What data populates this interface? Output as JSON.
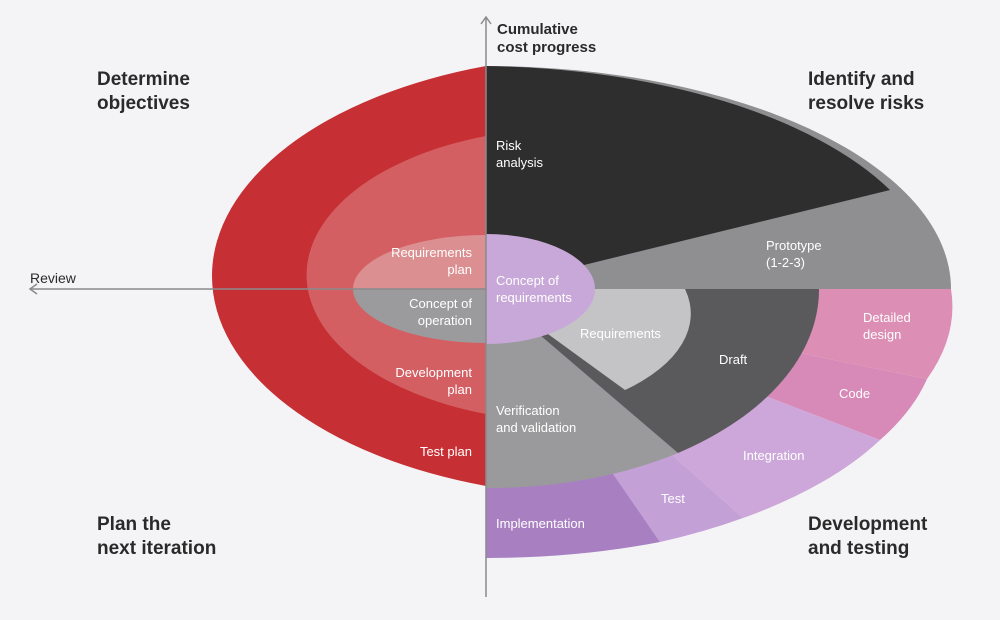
{
  "axes": {
    "vertical_label": [
      "Cumulative",
      "cost progress"
    ],
    "horizontal_label": "Review"
  },
  "quadrants": {
    "top_left": [
      "Determine",
      "objectives"
    ],
    "top_right": [
      "Identify and",
      "resolve risks"
    ],
    "bottom_left": [
      "Plan the",
      "next iteration"
    ],
    "bottom_right": [
      "Development",
      "and testing"
    ]
  },
  "segments": {
    "risk_analysis": [
      "Risk",
      "analysis"
    ],
    "prototype": [
      "Prototype",
      "(1-2-3)"
    ],
    "concept_of_requirements": [
      "Concept of",
      "requirements"
    ],
    "requirements_plan": [
      "Requirements",
      "plan"
    ],
    "concept_of_operation": [
      "Concept of",
      "operation"
    ],
    "development_plan": [
      "Development",
      "plan"
    ],
    "test_plan": [
      "Test plan"
    ],
    "requirements": [
      "Requirements"
    ],
    "draft": [
      "Draft"
    ],
    "detailed_design": [
      "Detailed",
      "design"
    ],
    "code": [
      "Code"
    ],
    "integration": [
      "Integration"
    ],
    "verification_and_validation": [
      "Verification",
      "and validation"
    ],
    "test": [
      "Test"
    ],
    "implementation": [
      "Implementation"
    ]
  },
  "colors": {
    "background": "#f4f4f6",
    "red_dark": "#c62f33",
    "red_mid": "#d45f62",
    "red_light": "#db8f90",
    "gray_inner": "#9b9b9d",
    "black": "#2e2e2e",
    "gray_mid": "#8f8f92",
    "gray_dark": "#5a5a5d",
    "gray_light": "#c4c4c6",
    "gray_vv": "#9a9a9c",
    "lilac_center": "#c8a8d8",
    "pink": "#dc8eb4",
    "lilac": "#cda7d9",
    "lilac_test": "#c3a0d6",
    "purple": "#a880c2",
    "axis": "#8a8a8c",
    "text_dark": "#2a2a2a",
    "text_light": "#ffffff"
  }
}
